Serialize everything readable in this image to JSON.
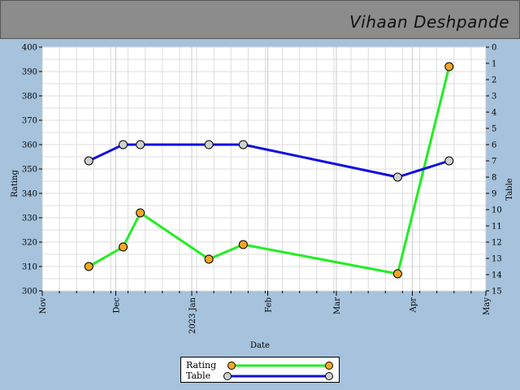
{
  "header": {
    "title": "Vihaan Deshpande"
  },
  "colors": {
    "rating_line": "#22ee22",
    "rating_marker": "#f5a623",
    "table_line": "#1010dd",
    "table_marker": "#d0d0d0",
    "plot_bg": "#ffffff",
    "grid": "#dddddd",
    "header_bg": "#8c8c8c",
    "page_bg": "#a6c2dc"
  },
  "chart_data": {
    "type": "line",
    "xlabel": "Date",
    "ylabel": "Rating",
    "y2label": "Table",
    "ylim": [
      300,
      400
    ],
    "y2lim": [
      0,
      15
    ],
    "y2_inverted": true,
    "grid": true,
    "legend_position": "bottom-center",
    "x_ticks": [
      {
        "label": "Nov",
        "date": "2022-11-01"
      },
      {
        "label": "Dec",
        "date": "2022-12-01"
      },
      {
        "label": "2023 Jan",
        "date": "2023-01-01"
      },
      {
        "label": "Feb",
        "date": "2023-02-01"
      },
      {
        "label": "Mar",
        "date": "2023-03-01"
      },
      {
        "label": "Apr",
        "date": "2023-04-01"
      },
      {
        "label": "May",
        "date": "2023-05-01"
      }
    ],
    "y_ticks": [
      300,
      310,
      320,
      330,
      340,
      350,
      360,
      370,
      380,
      390,
      400
    ],
    "y2_ticks": [
      0,
      1,
      2,
      3,
      4,
      5,
      6,
      7,
      8,
      9,
      10,
      11,
      12,
      13,
      14,
      15
    ],
    "series": [
      {
        "name": "Rating",
        "axis": "left",
        "points": [
          {
            "x": "2022-11-20",
            "y": 310
          },
          {
            "x": "2022-12-04",
            "y": 318
          },
          {
            "x": "2022-12-11",
            "y": 332
          },
          {
            "x": "2023-01-08",
            "y": 313
          },
          {
            "x": "2023-01-22",
            "y": 319
          },
          {
            "x": "2023-03-26",
            "y": 307
          },
          {
            "x": "2023-04-16",
            "y": 392
          }
        ]
      },
      {
        "name": "Table",
        "axis": "right",
        "points": [
          {
            "x": "2022-11-20",
            "y": 7
          },
          {
            "x": "2022-12-04",
            "y": 6
          },
          {
            "x": "2022-12-11",
            "y": 6
          },
          {
            "x": "2023-01-08",
            "y": 6
          },
          {
            "x": "2023-01-22",
            "y": 6
          },
          {
            "x": "2023-03-26",
            "y": 8
          },
          {
            "x": "2023-04-16",
            "y": 7
          }
        ]
      }
    ]
  }
}
